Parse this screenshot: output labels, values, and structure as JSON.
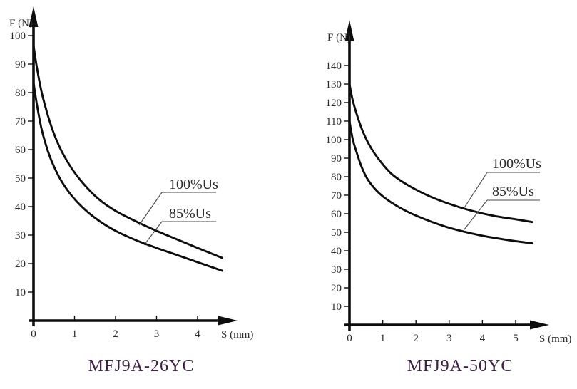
{
  "colors": {
    "background": "#ffffff",
    "curve": "#0d0d0d",
    "axis": "#0d0d0d",
    "tick_label": "#2b2b2b",
    "leader_line": "#4a4a4a",
    "title": "#3e2345"
  },
  "chart_data": [
    {
      "type": "line",
      "title": "MFJ9A-26YC",
      "xlabel": "S (mm)",
      "ylabel": "F (N)",
      "x_ticks": [
        0,
        1,
        2,
        3,
        4
      ],
      "y_ticks": [
        10,
        20,
        30,
        40,
        50,
        60,
        70,
        80,
        90,
        100
      ],
      "xlim": [
        0,
        4.95
      ],
      "ylim": [
        0,
        110
      ],
      "grid": false,
      "legend": "inline curve labels with leader lines",
      "series": [
        {
          "name": "100%Us",
          "points": [
            [
              0,
              96.5
            ],
            [
              0.08,
              89
            ],
            [
              0.2,
              80
            ],
            [
              0.35,
              72
            ],
            [
              0.5,
              65.5
            ],
            [
              0.7,
              59
            ],
            [
              0.95,
              53
            ],
            [
              1.25,
              47.5
            ],
            [
              1.6,
              42.5
            ],
            [
              2,
              38.5
            ],
            [
              2.5,
              34.8
            ],
            [
              3,
              31.5
            ],
            [
              3.5,
              28.5
            ],
            [
              4,
              25.5
            ],
            [
              4.6,
              22
            ]
          ]
        },
        {
          "name": "85%Us",
          "points": [
            [
              0,
              83.5
            ],
            [
              0.08,
              76
            ],
            [
              0.2,
              67
            ],
            [
              0.35,
              59.5
            ],
            [
              0.5,
              54
            ],
            [
              0.7,
              48.5
            ],
            [
              0.95,
              43.5
            ],
            [
              1.25,
              39
            ],
            [
              1.6,
              35
            ],
            [
              2,
              31.5
            ],
            [
              2.5,
              28.2
            ],
            [
              3,
              25.5
            ],
            [
              3.5,
              23
            ],
            [
              4,
              20.5
            ],
            [
              4.6,
              17.5
            ]
          ]
        }
      ]
    },
    {
      "type": "line",
      "title": "MFJ9A-50YC",
      "xlabel": "S (mm)",
      "ylabel": "F (N)",
      "x_ticks": [
        0,
        1,
        2,
        3,
        4,
        5
      ],
      "y_ticks": [
        10,
        20,
        30,
        40,
        50,
        60,
        70,
        80,
        90,
        100,
        110,
        120,
        130,
        140
      ],
      "xlim": [
        0,
        6
      ],
      "ylim": [
        0,
        164
      ],
      "grid": false,
      "legend": "inline curve labels with leader lines",
      "series": [
        {
          "name": "100%Us",
          "points": [
            [
              0,
              130
            ],
            [
              0.1,
              121
            ],
            [
              0.25,
              112
            ],
            [
              0.4,
              104.5
            ],
            [
              0.6,
              97
            ],
            [
              0.9,
              89
            ],
            [
              1.3,
              81
            ],
            [
              1.9,
              74
            ],
            [
              2.6,
              68
            ],
            [
              3.5,
              62.5
            ],
            [
              4.3,
              59
            ],
            [
              5,
              57
            ],
            [
              5.5,
              55.5
            ]
          ]
        },
        {
          "name": "85%Us",
          "points": [
            [
              0,
              110
            ],
            [
              0.1,
              100
            ],
            [
              0.2,
              94
            ],
            [
              0.35,
              86
            ],
            [
              0.55,
              78.5
            ],
            [
              0.9,
              71
            ],
            [
              1.4,
              64.5
            ],
            [
              2,
              59
            ],
            [
              2.9,
              53
            ],
            [
              3.9,
              48.5
            ],
            [
              4.7,
              46
            ],
            [
              5.5,
              44
            ]
          ]
        }
      ]
    }
  ]
}
